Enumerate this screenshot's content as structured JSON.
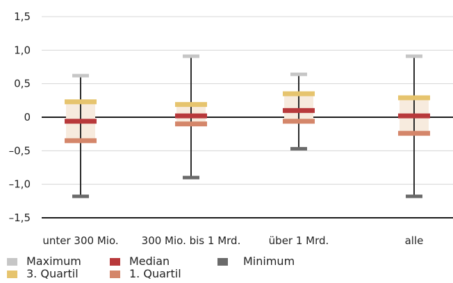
{
  "chart_data": {
    "type": "boxplot",
    "title": "",
    "xlabel": "",
    "ylabel": "",
    "ylim": [
      -1.5,
      1.5
    ],
    "yticks": [
      1.5,
      1.0,
      0.5,
      0,
      -0.5,
      -1.0,
      -1.5
    ],
    "ytick_labels": [
      "1,5",
      "1,0",
      "0,5",
      "0",
      "–0,5",
      "–1,0",
      "–1,5"
    ],
    "grid": true,
    "legend_position": "bottom-left",
    "categories": [
      "unter 300 Mio.",
      "300 Mio. bis 1 Mrd.",
      "über 1 Mrd.",
      "alle"
    ],
    "series": [
      {
        "name": "Maximum",
        "values": [
          0.62,
          0.91,
          0.64,
          0.91
        ]
      },
      {
        "name": "3. Quartil",
        "values": [
          0.23,
          0.19,
          0.35,
          0.29
        ]
      },
      {
        "name": "Median",
        "values": [
          -0.06,
          0.02,
          0.1,
          0.02
        ]
      },
      {
        "name": "1. Quartil",
        "values": [
          -0.35,
          -0.1,
          -0.06,
          -0.24
        ]
      },
      {
        "name": "Minimum",
        "values": [
          -1.18,
          -0.9,
          -0.47,
          -1.18
        ]
      }
    ]
  },
  "legend": {
    "maximum": "Maximum",
    "median": "Median",
    "minimum": "Minimum",
    "q3": "3. Quartil",
    "q1": "1. Quartil"
  },
  "colors": {
    "maximum": "#c6c6c6",
    "q3": "#e6c46e",
    "median": "#b8393b",
    "q1": "#d4866a",
    "minimum": "#6a6a6a",
    "box_fill": "#f7ebde",
    "whisker": "#2a2a2a",
    "grid": "#d4d4d4",
    "axis": "#1a1a1a"
  }
}
